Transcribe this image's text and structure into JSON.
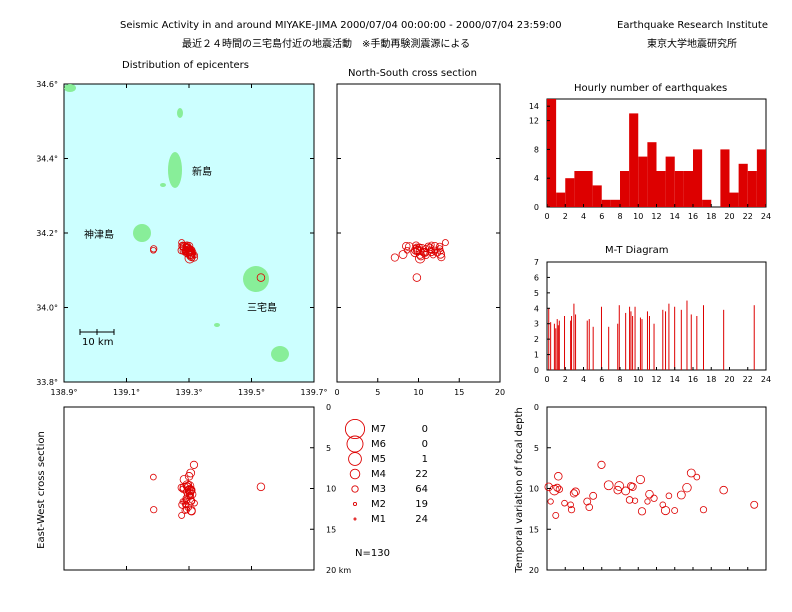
{
  "header": {
    "title_en": "Seismic Activity in and around MIYAKE-JIMA 2000/07/04 00:00:00 - 2000/07/04 23:59:00",
    "title_jp": "最近２４時間の三宅島付近の地震活動　※手動再験測震源による",
    "institute_en": "Earthquake Research Institute",
    "institute_jp": "東京大学地震研究所"
  },
  "colors": {
    "quake": "#dd0000",
    "sea": "#ccffff",
    "land": "#88ee99",
    "bars": "#dd0000"
  },
  "chart_data": [
    {
      "id": "map",
      "type": "scatter",
      "title": "Distribution of epicenters",
      "xticks": [
        "138.9°",
        "139.1°",
        "139.3°",
        "139.5°",
        "139.7°"
      ],
      "yticks": [
        "34.6°",
        "34.4°",
        "34.2°",
        "34.0°",
        "33.8°"
      ],
      "xlim": [
        138.9,
        139.7
      ],
      "ylim": [
        33.8,
        34.6
      ],
      "scale_label": "10 km",
      "islands": [
        {
          "name": "新島",
          "lon": 139.25,
          "lat": 34.37
        },
        {
          "name": "神津島",
          "lon": 139.0,
          "lat": 34.2
        },
        {
          "name": "三宅島",
          "lon": 139.53,
          "lat": 34.0
        }
      ],
      "points": [
        [
          139.5302,
          34.0803,
          3.4
        ],
        [
          139.2855,
          34.1527,
          2.7
        ],
        [
          139.3025,
          34.1322,
          4.0
        ],
        [
          139.2765,
          34.1743,
          2.9
        ],
        [
          139.2761,
          34.1535,
          3.2
        ],
        [
          139.3003,
          34.1646,
          3.4
        ],
        [
          139.2808,
          34.1622,
          3.0
        ],
        [
          139.3178,
          34.1407,
          2.8
        ],
        [
          139.2914,
          34.1501,
          2.8
        ],
        [
          139.1871,
          34.1575,
          3.0
        ],
        [
          139.303,
          34.1485,
          3.3
        ],
        [
          139.2943,
          34.1592,
          3.4
        ],
        [
          139.3064,
          34.1486,
          3.2
        ],
        [
          139.2977,
          34.1467,
          3.1
        ],
        [
          139.3035,
          34.1406,
          3.2
        ],
        [
          139.3159,
          34.1341,
          3.3
        ],
        [
          139.2944,
          34.1483,
          3.8
        ],
        [
          139.3072,
          34.1421,
          3.4
        ],
        [
          139.3013,
          34.1546,
          3.8
        ],
        [
          139.3053,
          34.1384,
          3.5
        ],
        [
          139.2925,
          34.1613,
          3.1
        ],
        [
          139.2935,
          34.1668,
          3.2
        ],
        [
          139.2967,
          34.1604,
          3.3
        ],
        [
          139.3105,
          34.1548,
          2.7
        ],
        [
          139.2848,
          34.1629,
          3.6
        ],
        [
          139.3085,
          34.1352,
          3.3
        ],
        [
          139.2799,
          34.1686,
          2.7
        ],
        [
          139.31,
          34.1476,
          3.4
        ],
        [
          139.291,
          34.1646,
          3.0
        ],
        [
          139.2882,
          34.1545,
          2.8
        ],
        [
          139.307,
          34.1436,
          3.6
        ],
        [
          139.3023,
          34.1585,
          2.8
        ],
        [
          139.2871,
          34.1514,
          2.9
        ],
        [
          139.2982,
          34.1479,
          3.5
        ],
        [
          139.2852,
          34.1532,
          3.7
        ],
        [
          139.3054,
          34.1422,
          3.5
        ],
        [
          139.186,
          34.1537,
          2.8
        ],
        [
          139.2922,
          34.1643,
          3.0
        ],
        [
          139.301,
          34.1526,
          3.4
        ],
        [
          139.2784,
          34.1654,
          3.2
        ]
      ]
    },
    {
      "id": "ns",
      "type": "scatter",
      "title": "North-South cross section",
      "xticks": [
        "0",
        "5",
        "10",
        "15",
        "20"
      ],
      "xlim": [
        0,
        20
      ],
      "points": [
        [
          9.8,
          34.0803,
          3.4
        ],
        [
          11.6,
          34.1527,
          2.7
        ],
        [
          10.2,
          34.1322,
          4.0
        ],
        [
          13.3,
          34.1743,
          2.9
        ],
        [
          9.9,
          34.1535,
          3.2
        ],
        [
          8.5,
          34.1646,
          3.4
        ],
        [
          10.1,
          34.1622,
          3.0
        ],
        [
          11.8,
          34.1407,
          2.8
        ],
        [
          12.0,
          34.1501,
          2.8
        ],
        [
          12.6,
          34.1575,
          3.0
        ],
        [
          10.6,
          34.1485,
          3.3
        ],
        [
          10.4,
          34.1592,
          3.4
        ],
        [
          11.6,
          34.1486,
          3.2
        ],
        [
          12.3,
          34.1467,
          3.1
        ],
        [
          10.9,
          34.1406,
          3.2
        ],
        [
          7.1,
          34.1341,
          3.3
        ],
        [
          9.6,
          34.1483,
          3.8
        ],
        [
          10.2,
          34.1421,
          3.4
        ],
        [
          9.7,
          34.1546,
          3.8
        ],
        [
          10.3,
          34.1384,
          3.5
        ],
        [
          11.4,
          34.1613,
          3.1
        ],
        [
          9.7,
          34.1668,
          3.2
        ],
        [
          9.8,
          34.1604,
          3.3
        ],
        [
          11.5,
          34.1548,
          2.7
        ],
        [
          8.9,
          34.1629,
          3.6
        ],
        [
          12.8,
          34.1352,
          3.3
        ],
        [
          11.6,
          34.1686,
          2.7
        ],
        [
          10.7,
          34.1476,
          3.4
        ],
        [
          11.2,
          34.1646,
          3.0
        ],
        [
          12.0,
          34.1545,
          2.8
        ],
        [
          12.7,
          34.1436,
          3.6
        ],
        [
          10.9,
          34.1585,
          2.8
        ],
        [
          12.7,
          34.1514,
          2.9
        ],
        [
          10.8,
          34.1479,
          3.5
        ],
        [
          9.9,
          34.1532,
          3.7
        ],
        [
          8.1,
          34.1422,
          3.5
        ],
        [
          8.6,
          34.1537,
          2.8
        ],
        [
          12.6,
          34.1643,
          3.0
        ],
        [
          10.2,
          34.1526,
          3.4
        ],
        [
          12.0,
          34.1654,
          3.2
        ]
      ]
    },
    {
      "id": "ew",
      "type": "scatter",
      "ylabel": "East-West cross section",
      "yticks": [
        "0",
        "5",
        "10",
        "15",
        "20 km"
      ],
      "ylim": [
        0,
        20
      ],
      "points": [
        [
          139.5302,
          9.8,
          3.4
        ],
        [
          139.2855,
          11.6,
          2.7
        ],
        [
          139.3025,
          10.2,
          4.0
        ],
        [
          139.2765,
          13.3,
          2.9
        ],
        [
          139.2761,
          9.9,
          3.2
        ],
        [
          139.3003,
          8.5,
          3.4
        ],
        [
          139.2808,
          10.1,
          3.0
        ],
        [
          139.3178,
          11.8,
          2.8
        ],
        [
          139.2914,
          12.0,
          2.8
        ],
        [
          139.1871,
          12.6,
          3.0
        ],
        [
          139.303,
          10.6,
          3.3
        ],
        [
          139.2943,
          10.4,
          3.4
        ],
        [
          139.3064,
          11.6,
          3.2
        ],
        [
          139.2977,
          12.3,
          3.1
        ],
        [
          139.3035,
          10.9,
          3.2
        ],
        [
          139.3159,
          7.1,
          3.3
        ],
        [
          139.2944,
          9.6,
          3.8
        ],
        [
          139.3072,
          10.2,
          3.4
        ],
        [
          139.3013,
          9.7,
          3.8
        ],
        [
          139.3053,
          10.3,
          3.5
        ],
        [
          139.2925,
          11.4,
          3.1
        ],
        [
          139.2935,
          9.7,
          3.2
        ],
        [
          139.2967,
          9.8,
          3.3
        ],
        [
          139.3105,
          11.5,
          2.7
        ],
        [
          139.2848,
          8.9,
          3.6
        ],
        [
          139.3085,
          12.8,
          3.3
        ],
        [
          139.2799,
          11.6,
          2.7
        ],
        [
          139.31,
          10.7,
          3.4
        ],
        [
          139.291,
          11.2,
          3.0
        ],
        [
          139.2882,
          12.0,
          2.8
        ],
        [
          139.307,
          12.7,
          3.6
        ],
        [
          139.3023,
          10.9,
          2.8
        ],
        [
          139.2871,
          12.7,
          2.9
        ],
        [
          139.2982,
          10.8,
          3.5
        ],
        [
          139.2852,
          9.9,
          3.7
        ],
        [
          139.3054,
          8.1,
          3.5
        ],
        [
          139.186,
          8.6,
          2.8
        ],
        [
          139.2922,
          12.6,
          3.0
        ],
        [
          139.301,
          10.2,
          3.4
        ],
        [
          139.2784,
          12.0,
          3.2
        ]
      ]
    },
    {
      "id": "legend",
      "type": "table",
      "rows": [
        {
          "label": "M7",
          "count": "0"
        },
        {
          "label": "M6",
          "count": "0"
        },
        {
          "label": "M5",
          "count": "1"
        },
        {
          "label": "M4",
          "count": "22"
        },
        {
          "label": "M3",
          "count": "64"
        },
        {
          "label": "M2",
          "count": "19"
        },
        {
          "label": "M1",
          "count": "24"
        }
      ],
      "total": "N=130"
    },
    {
      "id": "hourly",
      "type": "bar",
      "title": "Hourly number of earthquakes",
      "xticks": [
        "0",
        "2",
        "4",
        "6",
        "8",
        "10",
        "12",
        "14",
        "16",
        "18",
        "20",
        "22",
        "24"
      ],
      "yticks": [
        "14",
        "12",
        "8",
        "4",
        "0"
      ],
      "ylim": [
        0,
        15
      ],
      "values": [
        15,
        2,
        4,
        5,
        5,
        3,
        1,
        1,
        5,
        13,
        7,
        9,
        5,
        7,
        5,
        5,
        8,
        1,
        0,
        8,
        2,
        6,
        5,
        8
      ]
    },
    {
      "id": "mt",
      "type": "bar",
      "title": "M-T Diagram",
      "xticks": [
        "0",
        "2",
        "4",
        "6",
        "8",
        "10",
        "12",
        "14",
        "16",
        "18",
        "20",
        "22",
        "24"
      ],
      "yticks": [
        "7",
        "6",
        "5",
        "4",
        "3",
        "2",
        "1",
        "0"
      ],
      "ylim": [
        0,
        7
      ],
      "points": [
        [
          0.19,
          4.0
        ],
        [
          0.4,
          3.1
        ],
        [
          0.81,
          3.0
        ],
        [
          0.96,
          2.7
        ],
        [
          1.12,
          3.3
        ],
        [
          1.24,
          2.9
        ],
        [
          1.35,
          3.2
        ],
        [
          1.92,
          3.5
        ],
        [
          2.59,
          3.2
        ],
        [
          2.69,
          3.5
        ],
        [
          2.95,
          4.3
        ],
        [
          3.13,
          3.6
        ],
        [
          4.41,
          3.2
        ],
        [
          4.63,
          3.3
        ],
        [
          5.06,
          2.8
        ],
        [
          5.97,
          4.1
        ],
        [
          6.76,
          2.8
        ],
        [
          7.75,
          3.0
        ],
        [
          7.92,
          4.2
        ],
        [
          8.62,
          3.7
        ],
        [
          9.05,
          4.1
        ],
        [
          9.2,
          3.8
        ],
        [
          9.38,
          3.5
        ],
        [
          9.65,
          4.1
        ],
        [
          10.24,
          3.4
        ],
        [
          10.41,
          3.3
        ],
        [
          11.01,
          3.8
        ],
        [
          11.23,
          3.5
        ],
        [
          11.73,
          3.0
        ],
        [
          12.69,
          3.9
        ],
        [
          12.99,
          3.8
        ],
        [
          13.36,
          4.3
        ],
        [
          13.99,
          4.1
        ],
        [
          14.72,
          3.9
        ],
        [
          15.34,
          4.5
        ],
        [
          15.81,
          3.6
        ],
        [
          16.42,
          3.5
        ],
        [
          17.15,
          4.2
        ],
        [
          19.36,
          3.9
        ],
        [
          22.71,
          4.2
        ]
      ]
    },
    {
      "id": "depth",
      "type": "scatter",
      "ylabel": "Temporal variation of focal depth",
      "yticks": [
        "0",
        "5",
        "10",
        "15",
        "20"
      ],
      "ylim": [
        0,
        20
      ],
      "xlim": [
        0,
        24
      ],
      "points": [
        [
          0.19,
          9.8,
          3.4
        ],
        [
          0.4,
          11.6,
          2.7
        ],
        [
          0.81,
          10.2,
          4.0
        ],
        [
          0.96,
          13.3,
          2.9
        ],
        [
          1.12,
          9.9,
          3.2
        ],
        [
          1.24,
          8.5,
          3.4
        ],
        [
          1.35,
          10.1,
          3.0
        ],
        [
          1.92,
          11.8,
          2.8
        ],
        [
          2.59,
          12.0,
          2.8
        ],
        [
          2.69,
          12.6,
          3.0
        ],
        [
          2.95,
          10.6,
          3.3
        ],
        [
          3.13,
          10.4,
          3.4
        ],
        [
          4.41,
          11.6,
          3.2
        ],
        [
          4.63,
          12.3,
          3.1
        ],
        [
          5.06,
          10.9,
          3.2
        ],
        [
          5.97,
          7.1,
          3.3
        ],
        [
          6.76,
          9.6,
          3.8
        ],
        [
          7.75,
          10.2,
          3.4
        ],
        [
          7.92,
          9.7,
          3.8
        ],
        [
          8.62,
          10.3,
          3.5
        ],
        [
          9.05,
          11.4,
          3.1
        ],
        [
          9.2,
          9.7,
          3.2
        ],
        [
          9.38,
          9.8,
          3.3
        ],
        [
          9.65,
          11.5,
          2.7
        ],
        [
          10.24,
          8.9,
          3.6
        ],
        [
          10.41,
          12.8,
          3.3
        ],
        [
          11.01,
          11.6,
          2.7
        ],
        [
          11.23,
          10.7,
          3.4
        ],
        [
          11.73,
          11.2,
          3.0
        ],
        [
          12.69,
          12.0,
          2.8
        ],
        [
          12.99,
          12.7,
          3.6
        ],
        [
          13.36,
          10.9,
          2.8
        ],
        [
          13.99,
          12.7,
          2.9
        ],
        [
          14.72,
          10.8,
          3.5
        ],
        [
          15.34,
          9.9,
          3.7
        ],
        [
          15.81,
          8.1,
          3.5
        ],
        [
          16.42,
          8.6,
          2.8
        ],
        [
          17.15,
          12.6,
          3.0
        ],
        [
          19.36,
          10.2,
          3.4
        ],
        [
          22.71,
          12.0,
          3.2
        ]
      ]
    }
  ]
}
